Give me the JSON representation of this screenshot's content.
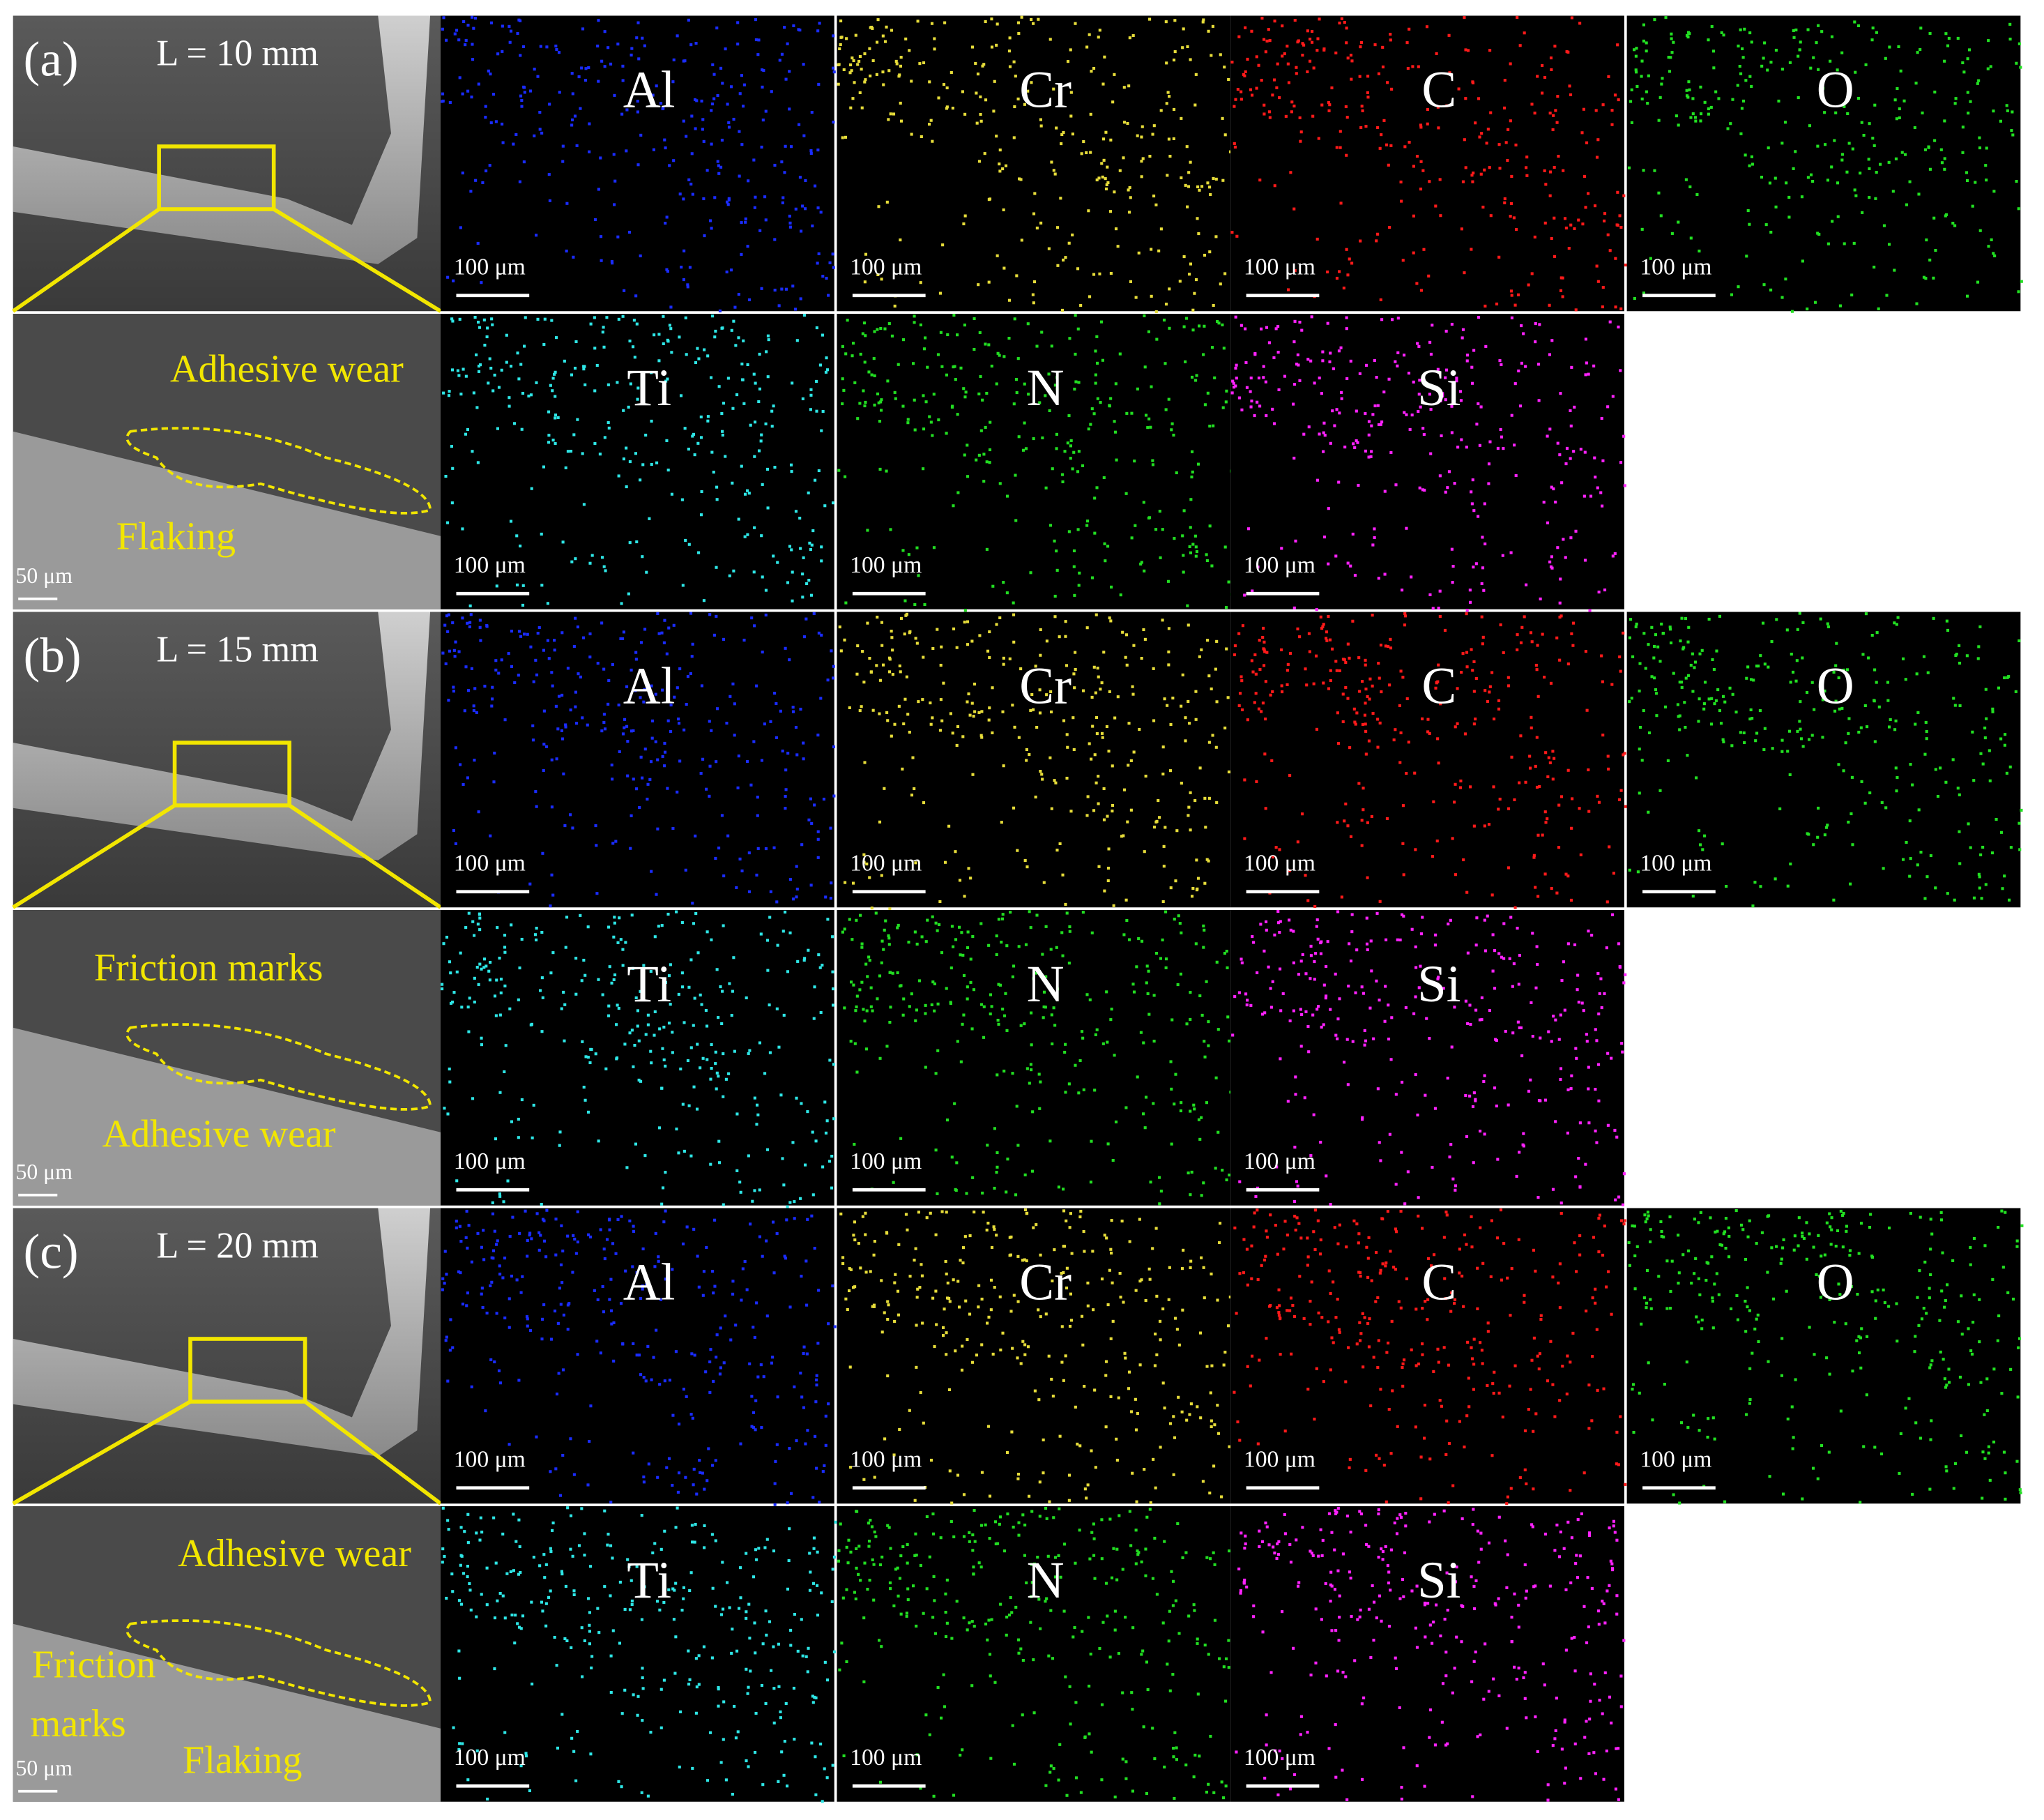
{
  "rows": [
    {
      "label": "(a)",
      "length": "L = 10 mm",
      "sem_scale": "50 μm",
      "annotations": [
        "Adhesive wear",
        "Flaking"
      ],
      "maps": [
        {
          "element": "Al",
          "scale": "100 μm"
        },
        {
          "element": "Cr",
          "scale": "100 μm"
        },
        {
          "element": "C",
          "scale": "100 μm"
        },
        {
          "element": "O",
          "scale": "100 μm"
        },
        {
          "element": "Ti",
          "scale": "100 μm"
        },
        {
          "element": "N",
          "scale": "100 μm"
        },
        {
          "element": "Si",
          "scale": "100 μm"
        }
      ]
    },
    {
      "label": "(b)",
      "length": "L = 15 mm",
      "sem_scale": "50 μm",
      "annotations": [
        "Friction marks",
        "Adhesive wear"
      ],
      "maps": [
        {
          "element": "Al",
          "scale": "100 μm"
        },
        {
          "element": "Cr",
          "scale": "100 μm"
        },
        {
          "element": "C",
          "scale": "100 μm"
        },
        {
          "element": "O",
          "scale": "100 μm"
        },
        {
          "element": "Ti",
          "scale": "100 μm"
        },
        {
          "element": "N",
          "scale": "100 μm"
        },
        {
          "element": "Si",
          "scale": "100 μm"
        }
      ]
    },
    {
      "label": "(c)",
      "length": "L = 20 mm",
      "sem_scale": "50 μm",
      "annotations": [
        "Adhesive wear",
        "Friction",
        "marks",
        "Flaking"
      ],
      "maps": [
        {
          "element": "Al",
          "scale": "100 μm"
        },
        {
          "element": "Cr",
          "scale": "100 μm"
        },
        {
          "element": "C",
          "scale": "100 μm"
        },
        {
          "element": "O",
          "scale": "100 μm"
        },
        {
          "element": "Ti",
          "scale": "100 μm"
        },
        {
          "element": "N",
          "scale": "100 μm"
        },
        {
          "element": "Si",
          "scale": "100 μm"
        }
      ]
    }
  ]
}
